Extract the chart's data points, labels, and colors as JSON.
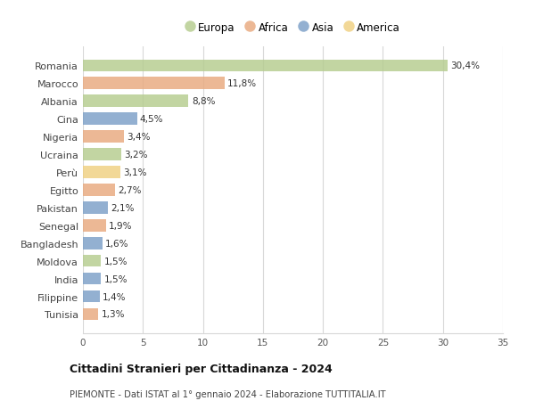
{
  "countries": [
    "Romania",
    "Marocco",
    "Albania",
    "Cina",
    "Nigeria",
    "Ucraina",
    "Perù",
    "Egitto",
    "Pakistan",
    "Senegal",
    "Bangladesh",
    "Moldova",
    "India",
    "Filippine",
    "Tunisia"
  ],
  "values": [
    30.4,
    11.8,
    8.8,
    4.5,
    3.4,
    3.2,
    3.1,
    2.7,
    2.1,
    1.9,
    1.6,
    1.5,
    1.5,
    1.4,
    1.3
  ],
  "labels": [
    "30,4%",
    "11,8%",
    "8,8%",
    "4,5%",
    "3,4%",
    "3,2%",
    "3,1%",
    "2,7%",
    "2,1%",
    "1,9%",
    "1,6%",
    "1,5%",
    "1,5%",
    "1,4%",
    "1,3%"
  ],
  "categories": [
    "Europa",
    "Africa",
    "Europa",
    "Asia",
    "Africa",
    "Europa",
    "America",
    "Africa",
    "Asia",
    "Africa",
    "Asia",
    "Europa",
    "Asia",
    "Asia",
    "Africa"
  ],
  "colors": {
    "Europa": "#b5cc8e",
    "Africa": "#e8a97e",
    "Asia": "#7b9fc7",
    "America": "#f0d080"
  },
  "legend_order": [
    "Europa",
    "Africa",
    "Asia",
    "America"
  ],
  "title": "Cittadini Stranieri per Cittadinanza - 2024",
  "subtitle": "PIEMONTE - Dati ISTAT al 1° gennaio 2024 - Elaborazione TUTTITALIA.IT",
  "xlim": [
    0,
    35
  ],
  "xticks": [
    0,
    5,
    10,
    15,
    20,
    25,
    30,
    35
  ],
  "background_color": "#ffffff",
  "grid_color": "#d8d8d8",
  "bar_height": 0.68
}
